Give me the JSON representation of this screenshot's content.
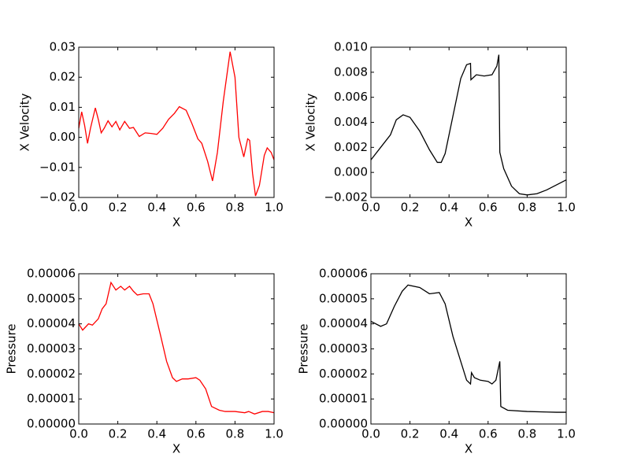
{
  "chart_data": [
    {
      "type": "line",
      "xlabel": "X",
      "ylabel": "X Velocity",
      "x": [
        0,
        0.015,
        0.03,
        0.045,
        0.06,
        0.085,
        0.1,
        0.115,
        0.13,
        0.15,
        0.17,
        0.19,
        0.21,
        0.235,
        0.26,
        0.28,
        0.31,
        0.34,
        0.37,
        0.4,
        0.43,
        0.46,
        0.49,
        0.515,
        0.55,
        0.58,
        0.61,
        0.63,
        0.66,
        0.685,
        0.71,
        0.74,
        0.775,
        0.8,
        0.82,
        0.845,
        0.865,
        0.875,
        0.89,
        0.905,
        0.925,
        0.95,
        0.965,
        0.985,
        1.0
      ],
      "series": [
        {
          "color": "#ff0000",
          "values": [
            0.003,
            0.0085,
            0.004,
            -0.002,
            0.003,
            0.0098,
            0.006,
            0.0015,
            0.003,
            0.0055,
            0.0035,
            0.0053,
            0.0025,
            0.0053,
            0.003,
            0.0033,
            0.0003,
            0.0015,
            0.0013,
            0.001,
            0.003,
            0.006,
            0.008,
            0.0102,
            0.009,
            0.0045,
            -0.0005,
            -0.002,
            -0.008,
            -0.0145,
            -0.005,
            0.012,
            0.0285,
            0.02,
            0.0,
            -0.0065,
            -0.0005,
            -0.001,
            -0.012,
            -0.0195,
            -0.016,
            -0.006,
            -0.0035,
            -0.005,
            -0.0075
          ]
        }
      ],
      "xlim": [
        0,
        1
      ],
      "xticks": [
        {
          "value": 0,
          "label": "0.0"
        },
        {
          "value": 0.2,
          "label": "0.2"
        },
        {
          "value": 0.4,
          "label": "0.4"
        },
        {
          "value": 0.6,
          "label": "0.6"
        },
        {
          "value": 0.8,
          "label": "0.8"
        },
        {
          "value": 1,
          "label": "1.0"
        }
      ],
      "ylim": [
        -0.02,
        0.03
      ],
      "yticks": [
        {
          "value": -0.02,
          "label": "−0.02"
        },
        {
          "value": -0.01,
          "label": "−0.01"
        },
        {
          "value": 0,
          "label": "0.00"
        },
        0.01,
        0.02,
        0.03
      ]
    },
    {
      "type": "line",
      "xlabel": "X",
      "ylabel": "X Velocity",
      "x": [
        0,
        0.05,
        0.1,
        0.13,
        0.165,
        0.2,
        0.25,
        0.3,
        0.34,
        0.36,
        0.38,
        0.42,
        0.46,
        0.49,
        0.51,
        0.512,
        0.54,
        0.58,
        0.62,
        0.645,
        0.655,
        0.66,
        0.68,
        0.72,
        0.76,
        0.8,
        0.85,
        0.9,
        0.95,
        1.0
      ],
      "series": [
        {
          "color": "#000000",
          "values": [
            0.001,
            0.002,
            0.003,
            0.0042,
            0.0046,
            0.0044,
            0.0033,
            0.0018,
            0.0008,
            0.0008,
            0.0015,
            0.0045,
            0.0075,
            0.0086,
            0.0087,
            0.0074,
            0.0078,
            0.0077,
            0.0078,
            0.0085,
            0.0094,
            0.0016,
            0.0003,
            -0.0011,
            -0.0017,
            -0.0018,
            -0.0017,
            -0.0014,
            -0.001,
            -0.0006
          ]
        }
      ],
      "xlim": [
        0,
        1
      ],
      "xticks": [
        {
          "value": 0,
          "label": "0.0"
        },
        {
          "value": 0.2,
          "label": "0.2"
        },
        {
          "value": 0.4,
          "label": "0.4"
        },
        {
          "value": 0.6,
          "label": "0.6"
        },
        {
          "value": 0.8,
          "label": "0.8"
        },
        {
          "value": 1,
          "label": "1.0"
        }
      ],
      "ylim": [
        -0.002,
        0.01
      ],
      "yticks": [
        {
          "value": -0.002,
          "label": "−0.002"
        },
        {
          "value": 0,
          "label": "0.000"
        },
        0.002,
        0.004,
        0.006,
        0.008,
        {
          "value": 0.01,
          "label": "0.010"
        }
      ]
    },
    {
      "type": "line",
      "xlabel": "X",
      "ylabel": "Pressure",
      "x": [
        0,
        0.02,
        0.05,
        0.07,
        0.1,
        0.12,
        0.14,
        0.165,
        0.19,
        0.215,
        0.235,
        0.26,
        0.28,
        0.3,
        0.33,
        0.36,
        0.38,
        0.42,
        0.45,
        0.48,
        0.5,
        0.53,
        0.56,
        0.6,
        0.62,
        0.65,
        0.68,
        0.72,
        0.75,
        0.8,
        0.85,
        0.87,
        0.9,
        0.94,
        0.97,
        1.0
      ],
      "series": [
        {
          "color": "#ff0000",
          "values": [
            4e-05,
            3.75e-05,
            4e-05,
            3.95e-05,
            4.2e-05,
            4.6e-05,
            4.8e-05,
            5.65e-05,
            5.35e-05,
            5.5e-05,
            5.35e-05,
            5.5e-05,
            5.3e-05,
            5.15e-05,
            5.2e-05,
            5.2e-05,
            4.8e-05,
            3.5e-05,
            2.5e-05,
            1.85e-05,
            1.7e-05,
            1.8e-05,
            1.8e-05,
            1.85e-05,
            1.75e-05,
            1.4e-05,
            7e-06,
            5.5e-06,
            5e-06,
            5e-06,
            4.5e-06,
            5e-06,
            4e-06,
            5e-06,
            5e-06,
            4.5e-06
          ]
        }
      ],
      "xlim": [
        0,
        1
      ],
      "xticks": [
        {
          "value": 0,
          "label": "0.0"
        },
        {
          "value": 0.2,
          "label": "0.2"
        },
        {
          "value": 0.4,
          "label": "0.4"
        },
        {
          "value": 0.6,
          "label": "0.6"
        },
        {
          "value": 0.8,
          "label": "0.8"
        },
        {
          "value": 1,
          "label": "1.0"
        }
      ],
      "ylim": [
        0,
        6e-05
      ],
      "yticks": [
        {
          "value": 0,
          "label": "0.00000"
        },
        1e-05,
        2e-05,
        3e-05,
        4e-05,
        5e-05,
        6e-05
      ]
    },
    {
      "type": "line",
      "xlabel": "X",
      "ylabel": "Pressure",
      "x": [
        0,
        0.05,
        0.08,
        0.12,
        0.16,
        0.19,
        0.25,
        0.3,
        0.35,
        0.38,
        0.42,
        0.46,
        0.49,
        0.51,
        0.515,
        0.53,
        0.56,
        0.6,
        0.62,
        0.64,
        0.66,
        0.665,
        0.7,
        0.8,
        0.9,
        0.95,
        1.0
      ],
      "series": [
        {
          "color": "#000000",
          "values": [
            4.1e-05,
            3.9e-05,
            4e-05,
            4.7e-05,
            5.3e-05,
            5.55e-05,
            5.45e-05,
            5.2e-05,
            5.25e-05,
            4.8e-05,
            3.5e-05,
            2.5e-05,
            1.75e-05,
            1.6e-05,
            2.05e-05,
            1.85e-05,
            1.75e-05,
            1.7e-05,
            1.6e-05,
            1.75e-05,
            2.5e-05,
            7e-06,
            5.5e-06,
            5e-06,
            4.8e-06,
            4.7e-06,
            4.7e-06
          ]
        }
      ],
      "xlim": [
        0,
        1
      ],
      "xticks": [
        {
          "value": 0,
          "label": "0.0"
        },
        {
          "value": 0.2,
          "label": "0.2"
        },
        {
          "value": 0.4,
          "label": "0.4"
        },
        {
          "value": 0.6,
          "label": "0.6"
        },
        {
          "value": 0.8,
          "label": "0.8"
        },
        {
          "value": 1,
          "label": "1.0"
        }
      ],
      "ylim": [
        0,
        6e-05
      ],
      "yticks": [
        {
          "value": 0,
          "label": "0.00000"
        },
        1e-05,
        2e-05,
        3e-05,
        4e-05,
        5e-05,
        6e-05
      ]
    }
  ]
}
